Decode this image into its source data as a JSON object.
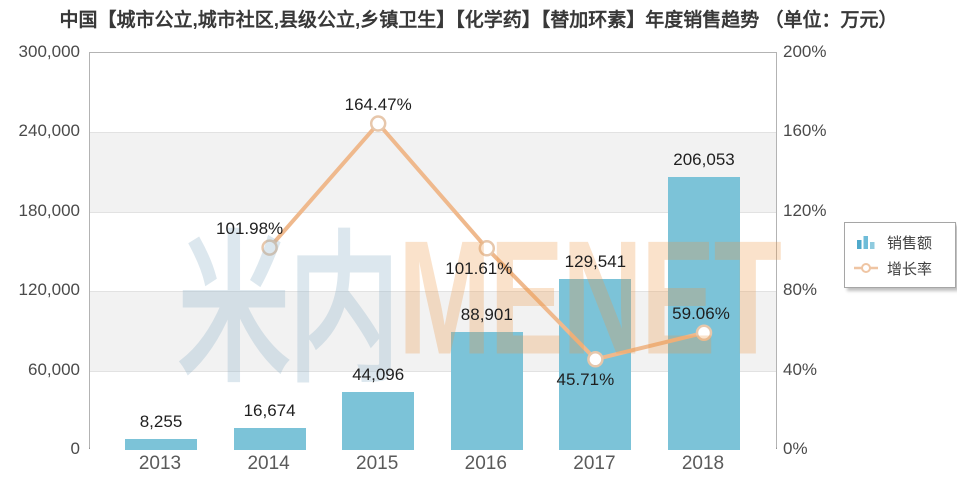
{
  "title": "中国【城市公立,城市社区,县级公立,乡镇卫生】【化学药】【替加环素】年度销售趋势 （单位：万元）",
  "watermark": {
    "cn": "米内",
    "en": "MENET"
  },
  "legend": {
    "items": [
      {
        "label": "销售额",
        "icon": "bar-chart-icon"
      },
      {
        "label": "增长率",
        "icon": "line-marker-icon"
      }
    ]
  },
  "colors": {
    "bar": "#7CC3D8",
    "line": "#EFB98D",
    "marker_fill": "#FFFFFF",
    "marker_stroke": "#E7C7AB",
    "band_gray": "#F2F2F2",
    "band_white": "#FFFFFF",
    "grid": "#E2E2E2",
    "axis_text": "#4A4A4A",
    "label_text": "#1F1F1F"
  },
  "chart_data": {
    "type": "bar+line combo, dual axis",
    "categories": [
      "2013",
      "2014",
      "2015",
      "2016",
      "2017",
      "2018"
    ],
    "series": [
      {
        "name": "销售额",
        "type": "bar",
        "axis": "left",
        "values": [
          8255,
          16674,
          44096,
          88901,
          129541,
          206053
        ],
        "labels": [
          "8,255",
          "16,674",
          "44,096",
          "88,901",
          "129,541",
          "206,053"
        ]
      },
      {
        "name": "增长率",
        "type": "line",
        "axis": "right",
        "values": [
          null,
          101.98,
          164.47,
          101.61,
          45.71,
          59.06
        ],
        "labels": [
          null,
          "101.98%",
          "164.47%",
          "101.61%",
          "45.71%",
          "59.06%"
        ]
      }
    ],
    "left_axis": {
      "min": 0,
      "max": 300000,
      "tick_labels": [
        "300,000",
        "240,000",
        "180,000",
        "120,000",
        "60,000",
        "0"
      ]
    },
    "right_axis": {
      "min": 0,
      "max": 200,
      "tick_labels": [
        "200%",
        "160%",
        "120%",
        "80%",
        "40%",
        "0%"
      ]
    },
    "grid": "horizontal gridlines with alternating white/gray bands",
    "legend_position": "middle-right",
    "growth_label_layout": [
      null,
      {
        "pos": "above",
        "dx": -20
      },
      {
        "pos": "above",
        "dx": 0
      },
      {
        "pos": "below",
        "dx": -8
      },
      {
        "pos": "below",
        "dx": -10
      },
      {
        "pos": "above",
        "dx": -3
      }
    ]
  }
}
